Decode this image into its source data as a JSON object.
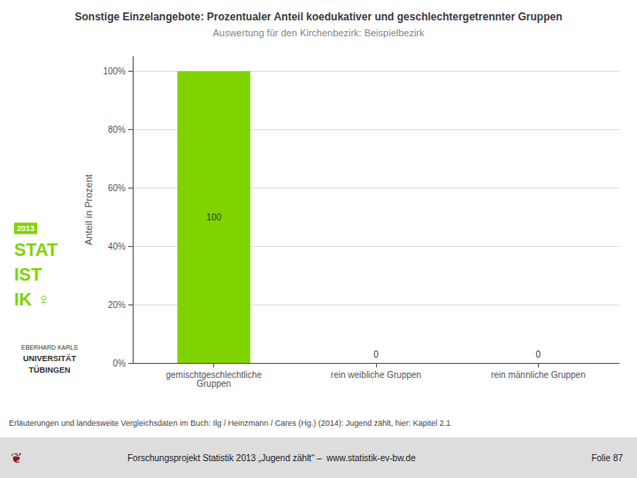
{
  "chart_data": {
    "type": "bar",
    "title": "Sonstige Einzelangebote: Prozentualer Anteil koedukativer und geschlechtergetrennter Gruppen",
    "subtitle": "Auswertung für den Kirchenbezirk: Beispielbezirk",
    "ylabel": "Anteil in Prozent",
    "categories": [
      "gemischtgeschlechtliche\nGruppen",
      "rein weibliche Gruppen",
      "rein männliche Gruppen"
    ],
    "values": [
      100,
      0,
      0
    ],
    "color": "#7FD400",
    "ylim": [
      0,
      105
    ],
    "yticks": [
      {
        "value": 0,
        "label": "0%"
      },
      {
        "value": 20,
        "label": "20%"
      },
      {
        "value": 40,
        "label": "40%"
      },
      {
        "value": 60,
        "label": "60%"
      },
      {
        "value": 80,
        "label": "80%"
      },
      {
        "value": 100,
        "label": "100%"
      }
    ],
    "grid": true,
    "data_labels": true,
    "annotations": [
      "Erläuterungen und landesweite Vergleichsdaten im Buch: Ilg / Heinzmann / Cares (Hg.) (2014): Jugend zählt, hier: Kapitel 2.1",
      "❦",
      "Forschungsprojekt Statistik 2013 „Jugend zählt“ –  www.statistik-ev-bw.de",
      "Folie 87",
      "STAT",
      "IST",
      "IK ♀",
      "2013",
      "EBERHARD KARLS",
      "UNIVERSITÄT",
      "TÜBINGEN"
    ]
  }
}
